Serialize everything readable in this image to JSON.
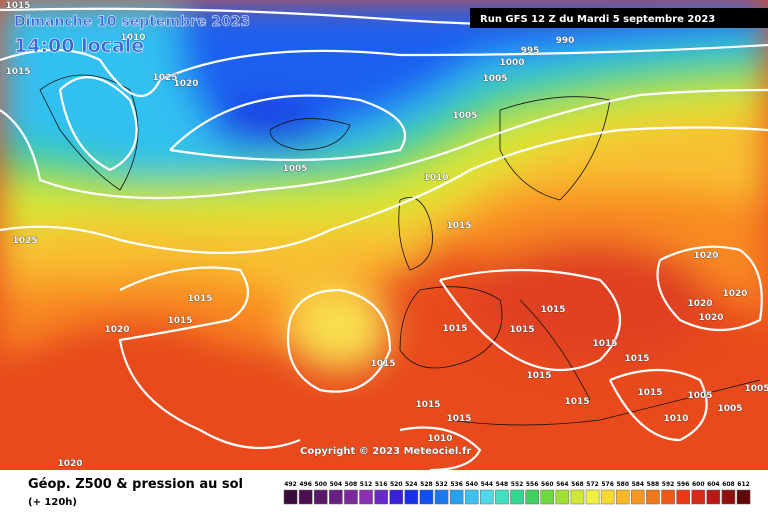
{
  "header": {
    "title": "Dimanche 10 septembre 2023",
    "time": "14:00 locale",
    "run": "Run GFS 12 Z du Mardi 5 septembre 2023"
  },
  "isobar_labels": [
    1015,
    1010,
    1025,
    1020,
    1015,
    995,
    990,
    1000,
    1005,
    1005,
    1005,
    1010,
    1015,
    1025,
    1015,
    1015,
    1020,
    1015,
    1015,
    1015,
    1020,
    1020,
    1020,
    1020,
    1015,
    1015,
    1015,
    1015,
    1015,
    1015,
    1005,
    1005,
    1005,
    1010,
    1015,
    1015,
    1010,
    1020
  ],
  "copyright": "Copyright © 2023 Meteociel.fr",
  "legend": {
    "title": "Géop. Z500 & pression au sol",
    "subtitle": "(+ 120h)",
    "scale": [
      492,
      496,
      500,
      504,
      508,
      512,
      516,
      520,
      524,
      528,
      532,
      536,
      540,
      544,
      548,
      552,
      556,
      560,
      564,
      568,
      572,
      576,
      580,
      584,
      588,
      592,
      596,
      600,
      604,
      608,
      612
    ],
    "colors": [
      "#3a0a3a",
      "#4a1050",
      "#5a1a6a",
      "#6a2080",
      "#7a2a9a",
      "#8a30b0",
      "#6a28c8",
      "#3a20d8",
      "#1a30e8",
      "#1050f0",
      "#1a78f0",
      "#28a0f0",
      "#40c0f0",
      "#50d8e8",
      "#40e0c0",
      "#30d890",
      "#40d060",
      "#70d840",
      "#a0e030",
      "#d0e830",
      "#f0f040",
      "#f8d830",
      "#f8b828",
      "#f89820",
      "#f07818",
      "#f05818",
      "#e83818",
      "#d82818",
      "#b81818",
      "#901010",
      "#600808"
    ]
  }
}
